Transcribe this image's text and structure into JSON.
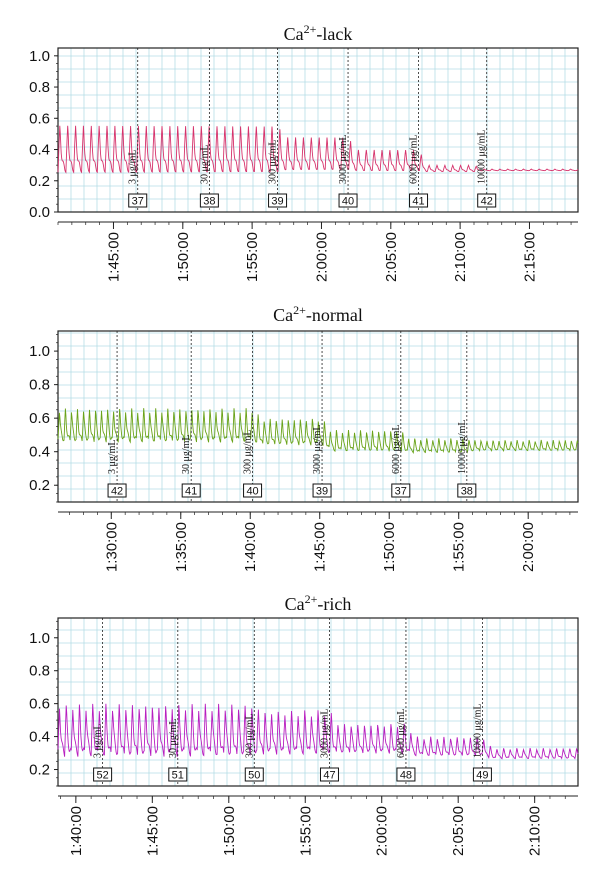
{
  "chart_data": [
    {
      "type": "line",
      "title": "Ca2+-lack",
      "title_parts": {
        "base": "Ca",
        "sup": "2+",
        "rest": "-lack"
      },
      "color": "#d6336c",
      "x_unit": "h:mm:ss",
      "ylim": [
        0,
        1.05
      ],
      "yticks": [
        "1.0",
        "0.8",
        "0.6",
        "0.4",
        "0.2",
        "0.0"
      ],
      "ytick_values": [
        1.0,
        0.8,
        0.6,
        0.4,
        0.2,
        0.0
      ],
      "xlim": [
        "1:41:00",
        "2:18:30"
      ],
      "xticks": [
        "1:45:00",
        "1:50:00",
        "1:55:00",
        "2:00:00",
        "2:05:00",
        "2:10:00",
        "2:15:00"
      ],
      "grid": true,
      "markers": [
        {
          "time": "1:46:45",
          "label": "3 μg/mL",
          "box": "37"
        },
        {
          "time": "1:51:55",
          "label": "30 μg/mL",
          "box": "38"
        },
        {
          "time": "1:56:50",
          "label": "300 μg/mL",
          "box": "39"
        },
        {
          "time": "2:01:55",
          "label": "3000 μg/mL",
          "box": "40"
        },
        {
          "time": "2:07:00",
          "label": "6000 μg/mL",
          "box": "41"
        },
        {
          "time": "2:11:55",
          "label": "10000 μg/mL",
          "box": "42"
        }
      ],
      "trace": {
        "start": "1:41:00",
        "end": "2:18:30",
        "phases": [
          {
            "from": "1:41:00",
            "to": "1:56:50",
            "min": 0.27,
            "max": 0.55,
            "cycle_s": 34
          },
          {
            "from": "1:56:50",
            "to": "2:01:55",
            "min": 0.28,
            "max": 0.48,
            "cycle_s": 34
          },
          {
            "from": "2:01:55",
            "to": "2:07:00",
            "min": 0.27,
            "max": 0.4,
            "cycle_s": 34
          },
          {
            "from": "2:07:00",
            "to": "2:11:00",
            "min": 0.26,
            "max": 0.3,
            "cycle_s": 34
          },
          {
            "from": "2:11:00",
            "to": "2:18:30",
            "min": 0.265,
            "max": 0.275,
            "cycle_s": 34
          }
        ]
      }
    },
    {
      "type": "line",
      "title": "Ca2+-normal",
      "title_parts": {
        "base": "Ca",
        "sup": "2+",
        "rest": "-normal"
      },
      "color": "#6aa31a",
      "x_unit": "h:mm:ss",
      "ylim": [
        0.1,
        1.12
      ],
      "yticks": [
        "1.0",
        "0.8",
        "0.6",
        "0.4",
        "0.2"
      ],
      "ytick_values": [
        1.0,
        0.8,
        0.6,
        0.4,
        0.2
      ],
      "xlim": [
        "1:26:10",
        "2:03:35"
      ],
      "xticks": [
        "1:30:00",
        "1:35:00",
        "1:40:00",
        "1:45:00",
        "1:50:00",
        "1:55:00",
        "2:00:00"
      ],
      "grid": true,
      "markers": [
        {
          "time": "1:30:25",
          "label": "3 μg/mL",
          "box": "42"
        },
        {
          "time": "1:35:45",
          "label": "30 μg/mL",
          "box": "41"
        },
        {
          "time": "1:40:10",
          "label": "300 μg/mL",
          "box": "40"
        },
        {
          "time": "1:45:10",
          "label": "3000 μg/mL",
          "box": "39"
        },
        {
          "time": "1:50:50",
          "label": "6000 μg/mL",
          "box": "37"
        },
        {
          "time": "1:55:35",
          "label": "10000 μg/mL",
          "box": "38"
        }
      ],
      "trace": {
        "start": "1:26:10",
        "end": "2:03:35",
        "phases": [
          {
            "from": "1:26:10",
            "to": "1:40:10",
            "min": 0.47,
            "max": 0.66,
            "cycle_s": 26
          },
          {
            "from": "1:40:10",
            "to": "1:45:10",
            "min": 0.45,
            "max": 0.6,
            "cycle_s": 26
          },
          {
            "from": "1:45:10",
            "to": "1:50:50",
            "min": 0.41,
            "max": 0.53,
            "cycle_s": 26
          },
          {
            "from": "1:50:50",
            "to": "1:55:35",
            "min": 0.4,
            "max": 0.48,
            "cycle_s": 26
          },
          {
            "from": "1:55:35",
            "to": "2:03:35",
            "min": 0.41,
            "max": 0.47,
            "cycle_s": 26
          }
        ]
      }
    },
    {
      "type": "line",
      "title": "Ca2+-rich",
      "title_parts": {
        "base": "Ca",
        "sup": "2+",
        "rest": "-rich"
      },
      "color": "#b81fc0",
      "x_unit": "h:mm:ss",
      "ylim": [
        0.1,
        1.12
      ],
      "yticks": [
        "1.0",
        "0.8",
        "0.6",
        "0.4",
        "0.2"
      ],
      "ytick_values": [
        1.0,
        0.8,
        0.6,
        0.4,
        0.2
      ],
      "xlim": [
        "1:38:50",
        "2:12:50"
      ],
      "xticks": [
        "1:40:00",
        "1:45:00",
        "1:50:00",
        "1:55:00",
        "2:00:00",
        "2:05:00",
        "2:10:00"
      ],
      "grid": true,
      "markers": [
        {
          "time": "1:41:45",
          "label": "3 μg/mL",
          "box": "52"
        },
        {
          "time": "1:46:40",
          "label": "30 μg/mL",
          "box": "51"
        },
        {
          "time": "1:51:40",
          "label": "300 μg/mL",
          "box": "50"
        },
        {
          "time": "1:56:35",
          "label": "3000 μg/mL",
          "box": "47"
        },
        {
          "time": "2:01:35",
          "label": "6000 μg/mL",
          "box": "48"
        },
        {
          "time": "2:06:35",
          "label": "10000 μg/mL",
          "box": "49"
        }
      ],
      "trace": {
        "start": "1:38:50",
        "end": "2:12:50",
        "phases": [
          {
            "from": "1:38:50",
            "to": "1:51:40",
            "min": 0.3,
            "max": 0.6,
            "cycle_s": 26
          },
          {
            "from": "1:51:40",
            "to": "1:56:35",
            "min": 0.31,
            "max": 0.56,
            "cycle_s": 26
          },
          {
            "from": "1:56:35",
            "to": "2:01:35",
            "min": 0.31,
            "max": 0.48,
            "cycle_s": 26
          },
          {
            "from": "2:01:35",
            "to": "2:06:35",
            "min": 0.29,
            "max": 0.4,
            "cycle_s": 26
          },
          {
            "from": "2:06:35",
            "to": "2:12:50",
            "min": 0.27,
            "max": 0.33,
            "cycle_s": 26
          }
        ]
      }
    }
  ]
}
